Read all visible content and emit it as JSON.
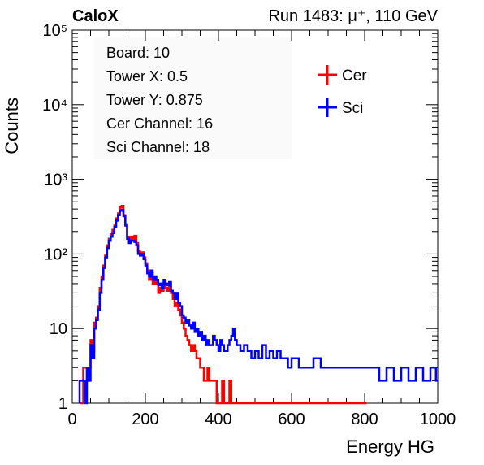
{
  "header": {
    "experiment": "CaloX",
    "run_info": "Run 1483:   μ⁺, 110 GeV"
  },
  "info_box": {
    "lines": [
      "Board: 10",
      "Tower X: 0.5",
      "Tower Y: 0.875",
      "Cer Channel: 16",
      "Sci Channel: 18"
    ]
  },
  "chart_data": {
    "type": "line",
    "style": "step-histogram",
    "xlabel": "Energy HG",
    "ylabel": "Counts",
    "xlim": [
      0,
      1000
    ],
    "ylim": [
      1,
      100000
    ],
    "yscale": "log",
    "x_ticks": [
      {
        "value": 0,
        "label": "0"
      },
      {
        "value": 200,
        "label": "200"
      },
      {
        "value": 400,
        "label": "400"
      },
      {
        "value": 600,
        "label": "600"
      },
      {
        "value": 800,
        "label": "800"
      },
      {
        "value": 1000,
        "label": "1000"
      }
    ],
    "y_ticks": [
      {
        "value": 1,
        "label": "1"
      },
      {
        "value": 10,
        "label": "10"
      },
      {
        "value": 100,
        "label": "10²"
      },
      {
        "value": 1000,
        "label": "10³"
      },
      {
        "value": 10000,
        "label": "10⁴"
      },
      {
        "value": 100000,
        "label": "10⁵"
      }
    ],
    "legend_position": "top-right",
    "bin_width": 5,
    "series": [
      {
        "name": "Cer",
        "color": "#ff0000",
        "x": [
          20,
          25,
          30,
          35,
          40,
          45,
          50,
          55,
          60,
          65,
          70,
          75,
          80,
          85,
          90,
          95,
          100,
          105,
          110,
          115,
          120,
          125,
          130,
          135,
          140,
          145,
          150,
          155,
          160,
          165,
          170,
          175,
          180,
          185,
          190,
          195,
          200,
          205,
          210,
          215,
          220,
          225,
          230,
          235,
          240,
          245,
          250,
          255,
          260,
          265,
          270,
          275,
          280,
          285,
          290,
          295,
          300,
          305,
          310,
          315,
          320,
          325,
          330,
          335,
          340,
          345,
          350,
          355,
          360,
          365,
          370,
          375,
          380,
          385,
          390,
          395,
          400,
          405,
          410,
          415,
          420,
          425,
          430,
          435,
          440,
          445,
          450,
          460,
          470,
          480,
          490,
          500,
          510,
          520,
          530,
          540,
          550,
          560,
          570,
          580,
          590,
          600,
          620,
          640,
          660,
          680,
          700,
          720,
          740,
          760,
          780,
          800
        ],
        "values": [
          1,
          1,
          3,
          3,
          2,
          3,
          7,
          5,
          12,
          14,
          20,
          35,
          50,
          70,
          95,
          130,
          160,
          185,
          210,
          240,
          300,
          350,
          420,
          440,
          330,
          250,
          170,
          160,
          170,
          160,
          175,
          140,
          110,
          100,
          105,
          90,
          75,
          60,
          45,
          55,
          40,
          45,
          40,
          30,
          35,
          32,
          38,
          35,
          32,
          40,
          30,
          25,
          20,
          22,
          18,
          15,
          12,
          10,
          8,
          7,
          6,
          5,
          6,
          5,
          4,
          4,
          3,
          3,
          2,
          2,
          3,
          2,
          2,
          2,
          2,
          1,
          1,
          1,
          2,
          1,
          1,
          1,
          2,
          1,
          1,
          1,
          1,
          1,
          1,
          1,
          1,
          1,
          1,
          1,
          1,
          1,
          1,
          1,
          1,
          1,
          1,
          1,
          1,
          1,
          1,
          1,
          1,
          1,
          1,
          1,
          1,
          1
        ]
      },
      {
        "name": "Sci",
        "color": "#0000ff",
        "x": [
          20,
          25,
          30,
          35,
          40,
          45,
          50,
          55,
          60,
          65,
          70,
          75,
          80,
          85,
          90,
          95,
          100,
          105,
          110,
          115,
          120,
          125,
          130,
          135,
          140,
          145,
          150,
          155,
          160,
          165,
          170,
          175,
          180,
          185,
          190,
          195,
          200,
          205,
          210,
          215,
          220,
          225,
          230,
          235,
          240,
          245,
          250,
          255,
          260,
          265,
          270,
          275,
          280,
          285,
          290,
          295,
          300,
          305,
          310,
          315,
          320,
          325,
          330,
          335,
          340,
          345,
          350,
          355,
          360,
          365,
          370,
          375,
          380,
          385,
          390,
          395,
          400,
          405,
          410,
          415,
          420,
          425,
          430,
          435,
          440,
          445,
          450,
          460,
          470,
          480,
          490,
          500,
          510,
          520,
          530,
          540,
          550,
          560,
          570,
          580,
          590,
          600,
          620,
          640,
          660,
          680,
          700,
          720,
          740,
          760,
          780,
          800,
          820,
          840,
          860,
          880,
          900,
          920,
          940,
          960,
          980,
          995
        ],
        "values": [
          2,
          2,
          2,
          1,
          3,
          2,
          6,
          4,
          10,
          13,
          18,
          30,
          45,
          65,
          90,
          120,
          150,
          170,
          190,
          230,
          280,
          330,
          380,
          390,
          320,
          240,
          160,
          140,
          150,
          150,
          145,
          130,
          100,
          95,
          100,
          85,
          70,
          55,
          50,
          60,
          45,
          50,
          45,
          38,
          40,
          35,
          45,
          40,
          38,
          42,
          32,
          30,
          25,
          30,
          22,
          20,
          15,
          14,
          12,
          13,
          11,
          10,
          12,
          9,
          10,
          8,
          9,
          7,
          8,
          6,
          7,
          6,
          6,
          8,
          7,
          6,
          5,
          7,
          6,
          5,
          5,
          6,
          7,
          8,
          10,
          7,
          6,
          5,
          6,
          5,
          4,
          5,
          4,
          6,
          4,
          5,
          4,
          5,
          4,
          4,
          3,
          4,
          3,
          3,
          4,
          3,
          3,
          3,
          3,
          3,
          3,
          3,
          3,
          2,
          3,
          2,
          3,
          2,
          3,
          2,
          3,
          2
        ]
      }
    ]
  }
}
